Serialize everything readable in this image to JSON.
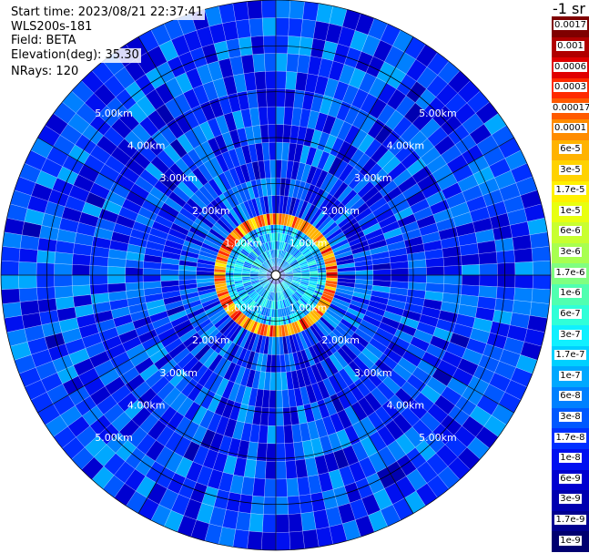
{
  "info": {
    "start_time": "Start time: 2023/08/21 22:37:41",
    "instrument": "WLS200s-181",
    "field": "Field: BETA",
    "elevation": "Elevation(deg): 35.30",
    "nrays": "NRays: 120"
  },
  "colorbar": {
    "title": "-1 sr",
    "labels": [
      "0.0017",
      "0.001",
      "0.0006",
      "0.0003",
      "0.00017",
      "0.0001",
      "6e-5",
      "3e-5",
      "1.7e-5",
      "1e-5",
      "6e-6",
      "3e-6",
      "1.7e-6",
      "1e-6",
      "6e-7",
      "3e-7",
      "1.7e-7",
      "1e-7",
      "6e-8",
      "3e-8",
      "1.7e-8",
      "1e-8",
      "6e-9",
      "3e-9",
      "1.7e-9",
      "1e-9"
    ],
    "colors": [
      "#7f0000",
      "#b00000",
      "#e00000",
      "#ff2a00",
      "#ff5a00",
      "#ff8c00",
      "#ffb300",
      "#ffd200",
      "#fff000",
      "#e8ff10",
      "#c8ff30",
      "#a8ff50",
      "#80ff80",
      "#50ffb0",
      "#30ffd8",
      "#10f0ff",
      "#00d0ff",
      "#00a8ff",
      "#0080ff",
      "#0058ff",
      "#0030ff",
      "#0010f0",
      "#0000d0",
      "#0000b0",
      "#000090",
      "#000070"
    ]
  },
  "chart_data": {
    "type": "heatmap",
    "projection": "polar (PPI scan)",
    "field": "BETA",
    "elevation_deg": 35.3,
    "n_rays": 120,
    "range_max_km": 6.0,
    "range_ring_labels": [
      "1.00km",
      "2.00km",
      "3.00km",
      "4.00km",
      "5.00km"
    ],
    "range_rings_km": [
      1,
      2,
      3,
      4,
      5
    ],
    "azimuth_lines_deg": [
      0,
      30,
      60,
      90,
      120,
      150
    ],
    "bands": [
      {
        "range_km": [
          0.0,
          0.2
        ],
        "beta": 1e-08,
        "note": "center"
      },
      {
        "range_km": [
          0.2,
          1.1
        ],
        "beta": 1.5e-07
      },
      {
        "range_km": [
          1.1,
          1.35
        ],
        "beta": 0.0001,
        "note": "high-backscatter ring"
      },
      {
        "range_km": [
          1.35,
          6.0
        ],
        "beta": 2e-08
      }
    ]
  }
}
